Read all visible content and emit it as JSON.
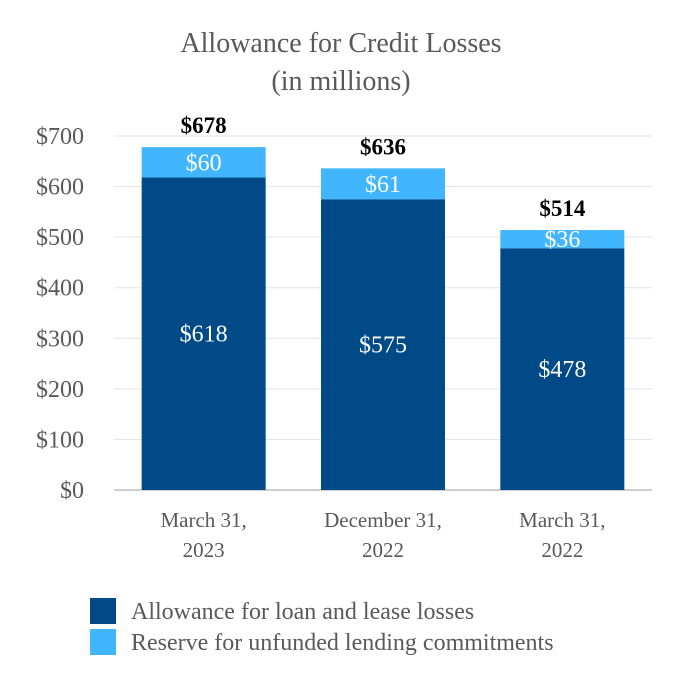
{
  "chart_data": {
    "type": "bar",
    "stacked": true,
    "title": [
      "Allowance for Credit Losses",
      "(in millions)"
    ],
    "categories": [
      [
        "March 31,",
        "2023"
      ],
      [
        "December 31,",
        "2022"
      ],
      [
        "March 31,",
        "2022"
      ]
    ],
    "series": [
      {
        "name": "Allowance for loan and lease losses",
        "color": "#004b87",
        "values": [
          618,
          575,
          478
        ],
        "labels": [
          "$618",
          "$575",
          "$478"
        ]
      },
      {
        "name": "Reserve for unfunded lending commitments",
        "color": "#41b6ff",
        "values": [
          60,
          61,
          36
        ],
        "labels": [
          "$60",
          "$61",
          "$36"
        ]
      }
    ],
    "totals": [
      "$678",
      "$636",
      "$514"
    ],
    "ylim": [
      0,
      700
    ],
    "yticks": [
      0,
      100,
      200,
      300,
      400,
      500,
      600,
      700
    ],
    "ytick_labels": [
      "$0",
      "$100",
      "$200",
      "$300",
      "$400",
      "$500",
      "$600",
      "$700"
    ],
    "grid": true,
    "legend_position": "bottom"
  }
}
